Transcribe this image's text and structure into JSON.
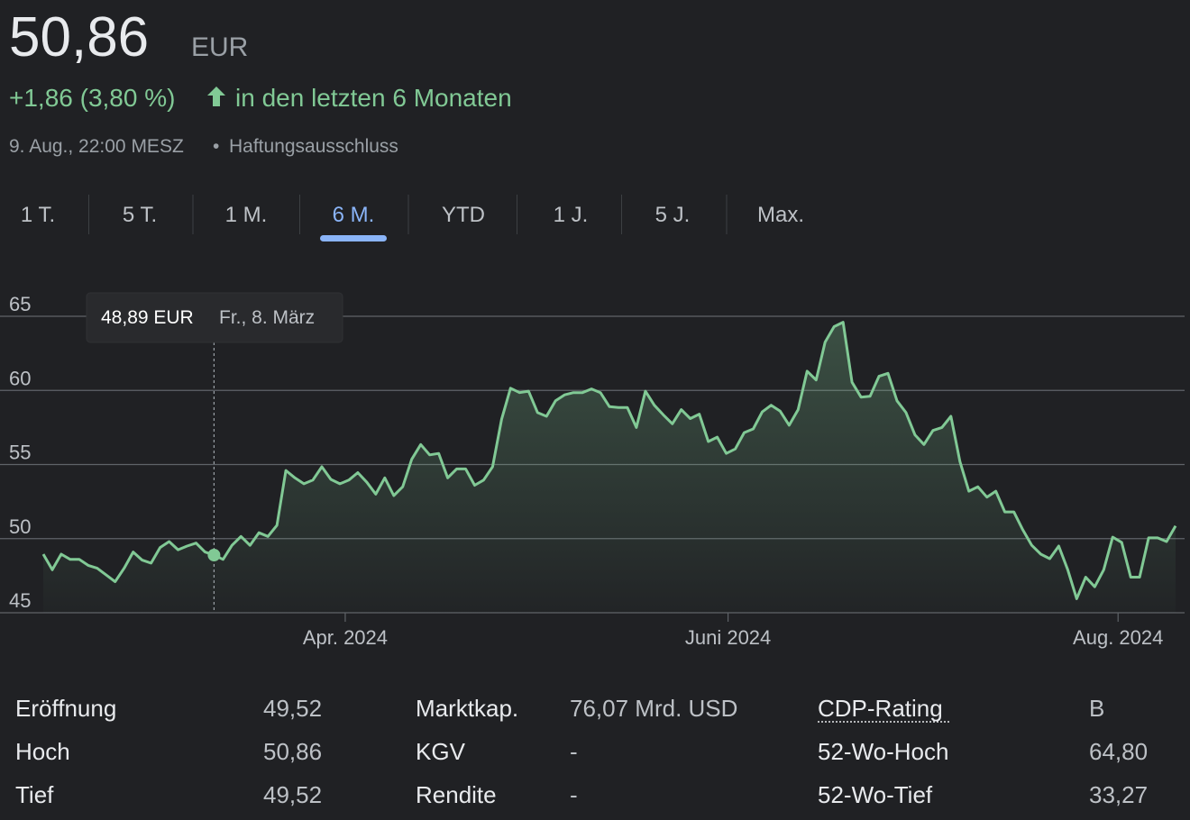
{
  "header": {
    "price": "50,86",
    "currency": "EUR",
    "change": "+1,86 (3,80 %)",
    "period": "in den letzten 6 Monaten",
    "timestamp": "9. Aug., 22:00 MESZ",
    "separator": "•",
    "disclaimer": "Haftungsausschluss"
  },
  "tabs": {
    "items": [
      "1 T.",
      "5 T.",
      "1 M.",
      "6 M.",
      "YTD",
      "1 J.",
      "5 J.",
      "Max."
    ],
    "active": 3
  },
  "chart_data": {
    "type": "line",
    "color": "#81c995",
    "grid": true,
    "values": [
      48.95,
      47.9,
      48.95,
      48.6,
      48.6,
      48.2,
      48.0,
      47.55,
      47.1,
      48.0,
      49.1,
      48.55,
      48.35,
      49.4,
      49.8,
      49.25,
      49.5,
      49.7,
      49.1,
      48.89,
      48.6,
      49.55,
      50.15,
      49.55,
      50.4,
      50.15,
      50.9,
      54.6,
      54.1,
      53.7,
      53.95,
      54.85,
      54.0,
      53.7,
      53.95,
      54.45,
      53.8,
      53.0,
      54.1,
      52.9,
      53.5,
      55.35,
      56.35,
      55.65,
      55.75,
      54.1,
      54.7,
      54.7,
      53.6,
      53.95,
      54.85,
      58.05,
      60.15,
      59.85,
      59.95,
      58.5,
      58.25,
      59.3,
      59.7,
      59.85,
      59.85,
      60.1,
      59.85,
      58.9,
      58.85,
      58.85,
      57.5,
      59.95,
      59.0,
      58.35,
      57.75,
      58.7,
      58.1,
      58.4,
      56.55,
      56.85,
      55.75,
      56.05,
      57.15,
      57.4,
      58.55,
      59.0,
      58.6,
      57.65,
      58.7,
      61.3,
      60.7,
      63.25,
      64.3,
      64.6,
      60.55,
      59.55,
      59.6,
      60.95,
      61.15,
      59.3,
      58.5,
      57.0,
      56.35,
      57.3,
      57.5,
      58.25,
      55.2,
      53.2,
      53.5,
      52.8,
      53.2,
      51.8,
      51.8,
      50.6,
      49.55,
      48.95,
      48.65,
      49.5,
      47.9,
      45.95,
      47.4,
      46.75,
      47.9,
      50.1,
      49.75,
      47.4,
      47.4,
      50.05,
      50.05,
      49.8,
      50.86
    ],
    "xlim": [
      0,
      126
    ],
    "xticks": [
      {
        "value": 33.6,
        "label": "Apr. 2024"
      },
      {
        "value": 76.2,
        "label": "Juni 2024"
      },
      {
        "value": 119.6,
        "label": "Aug. 2024"
      }
    ],
    "ylim": [
      45,
      65
    ],
    "yticks": [
      45,
      50,
      55,
      60,
      65
    ],
    "tooltip": {
      "x": 19,
      "value": 48.89,
      "label": "48,89 EUR",
      "date": "Fr., 8. März"
    }
  },
  "stats": [
    [
      {
        "label": "Eröffnung",
        "value": "49,52"
      },
      {
        "label": "Hoch",
        "value": "50,86"
      },
      {
        "label": "Tief",
        "value": "49,52"
      }
    ],
    [
      {
        "label": "Marktkap.",
        "value": "76,07 Mrd. USD"
      },
      {
        "label": "KGV",
        "value": "-"
      },
      {
        "label": "Rendite",
        "value": "-"
      }
    ],
    [
      {
        "label": "CDP-Rating",
        "value": "B"
      },
      {
        "label": "52-Wo-Hoch",
        "value": "64,80"
      },
      {
        "label": "52-Wo-Tief",
        "value": "33,27"
      }
    ]
  ]
}
